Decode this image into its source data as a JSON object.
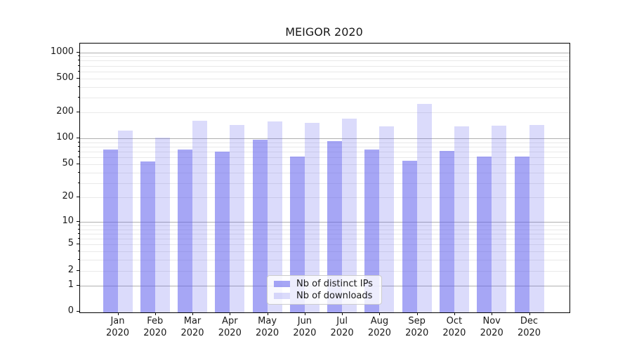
{
  "title": "MEIGOR 2020",
  "chart_data": {
    "type": "bar",
    "title": "MEIGOR 2020",
    "categories": [
      "Jan 2020",
      "Feb 2020",
      "Mar 2020",
      "Apr 2020",
      "May 2020",
      "Jun 2020",
      "Jul 2020",
      "Aug 2020",
      "Sep 2020",
      "Oct 2020",
      "Nov 2020",
      "Dec 2020"
    ],
    "series": [
      {
        "name": "Nb of distinct IPs",
        "color": "rgba(93,93,237,0.55)",
        "values": [
          74,
          54,
          75,
          70,
          96,
          61,
          94,
          74,
          55,
          71,
          61,
          62
        ]
      },
      {
        "name": "Nb of downloads",
        "color": "rgba(93,93,237,0.22)",
        "values": [
          124,
          103,
          162,
          145,
          158,
          153,
          170,
          138,
          255,
          138,
          140,
          143
        ]
      }
    ],
    "xlabel": "",
    "ylabel": "",
    "yscale": "log1p",
    "ylim": [
      0,
      1260
    ],
    "yticks": [
      0,
      1,
      2,
      5,
      10,
      20,
      50,
      100,
      200,
      500,
      1000
    ],
    "minor_ticks": [
      3,
      4,
      6,
      7,
      8,
      9,
      30,
      40,
      60,
      70,
      80,
      90,
      300,
      400,
      600,
      700,
      800,
      900
    ],
    "major_gridlines": [
      1,
      10,
      100,
      1000
    ],
    "grid": true,
    "legend_position": "lower center"
  },
  "colors": {
    "bar_dark": "rgba(93,93,237,0.55)",
    "bar_light": "rgba(93,93,237,0.22)",
    "grid_major": "#b0b0b0",
    "grid_minor": "#e9e9e9",
    "spine": "#000000",
    "text": "#191919",
    "legend_border": "#cccccc",
    "legend_bg": "rgba(255,255,255,0.8)"
  }
}
